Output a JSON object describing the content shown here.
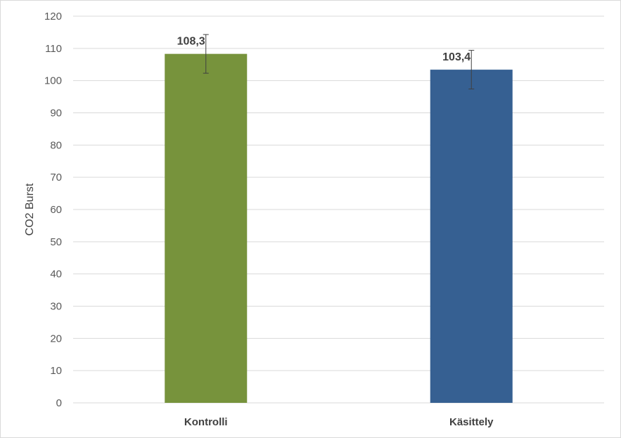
{
  "chart_data": {
    "type": "bar",
    "title": "",
    "xlabel": "",
    "ylabel": "CO2 Burst",
    "ylim": [
      0,
      120
    ],
    "ytick_step": 10,
    "grid": true,
    "legend": "none",
    "categories": [
      "Kontrolli",
      "Käsittely"
    ],
    "values": [
      108.3,
      103.4
    ],
    "value_labels": [
      "108,3",
      "103,4"
    ],
    "error": [
      6,
      6
    ],
    "colors": [
      "#77933c",
      "#366092"
    ]
  }
}
